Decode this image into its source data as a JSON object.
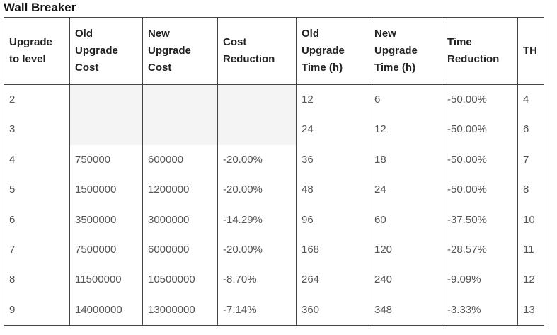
{
  "title": "Wall Breaker",
  "headers": [
    "Upgrade to level",
    "Old Upgrade Cost",
    "New Upgrade Cost",
    "Cost Reduction",
    "Old Upgrade Time (h)",
    "New Upgrade Time (h)",
    "Time Reduction",
    "TH"
  ],
  "rows": [
    [
      "2",
      "",
      "",
      "",
      "12",
      "6",
      "-50.00%",
      "4"
    ],
    [
      "3",
      "",
      "",
      "",
      "24",
      "12",
      "-50.00%",
      "6"
    ],
    [
      "4",
      "750000",
      "600000",
      "-20.00%",
      "36",
      "18",
      "-50.00%",
      "7"
    ],
    [
      "5",
      "1500000",
      "1200000",
      "-20.00%",
      "48",
      "24",
      "-50.00%",
      "8"
    ],
    [
      "6",
      "3500000",
      "3000000",
      "-14.29%",
      "96",
      "60",
      "-37.50%",
      "10"
    ],
    [
      "7",
      "7500000",
      "6000000",
      "-20.00%",
      "168",
      "120",
      "-28.57%",
      "11"
    ],
    [
      "8",
      "11500000",
      "10500000",
      "-8.70%",
      "264",
      "240",
      "-9.09%",
      "12"
    ],
    [
      "9",
      "14000000",
      "13000000",
      "-7.14%",
      "360",
      "348",
      "-3.33%",
      "13"
    ]
  ],
  "colors": {
    "empty_cell_shade": "#f4f4f4",
    "border": "#444444"
  }
}
